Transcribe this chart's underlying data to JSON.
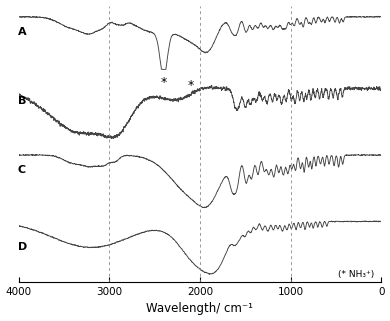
{
  "xlabel": "Wavelength/ cm⁻¹",
  "xticks": [
    4000,
    3000,
    2000,
    1000,
    0
  ],
  "vlines": [
    3000,
    2000,
    1000
  ],
  "labels": [
    "A",
    "B",
    "C",
    "D"
  ],
  "star_note": "(* NH₃⁺)",
  "line_color": "#444444",
  "background_color": "#ffffff"
}
